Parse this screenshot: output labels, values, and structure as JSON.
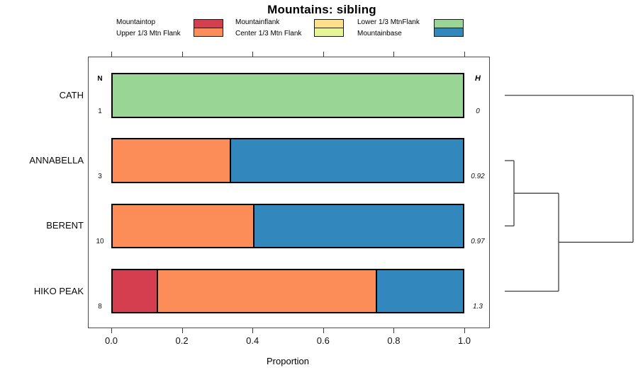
{
  "title": "Mountains: sibling",
  "legend": {
    "columns": [
      {
        "items": [
          {
            "label": "Mountaintop",
            "color": "#d53e4f"
          },
          {
            "label": "Upper 1/3 Mtn Flank",
            "color": "#fc8d59"
          }
        ]
      },
      {
        "items": [
          {
            "label": "Mountainflank",
            "color": "#fee08b"
          },
          {
            "label": "Center 1/3 Mtn Flank",
            "color": "#e6f598"
          }
        ]
      },
      {
        "items": [
          {
            "label": "Lower 1/3 MtnFlank",
            "color": "#99d594"
          },
          {
            "label": "Mountainbase",
            "color": "#3288bd"
          }
        ]
      }
    ]
  },
  "chart_data": {
    "type": "bar",
    "orientation": "horizontal-stacked",
    "title": "Mountains: sibling",
    "xlabel": "Proportion",
    "xlim": [
      0,
      1
    ],
    "xticks": [
      0.0,
      0.2,
      0.4,
      0.6,
      0.8,
      1.0
    ],
    "xtick_labels": [
      "0.0",
      "0.2",
      "0.4",
      "0.6",
      "0.8",
      "1.0"
    ],
    "grid": false,
    "categories": [
      "CATH",
      "ANNABELLA",
      "BERENT",
      "HIKO PEAK"
    ],
    "n_header": "N",
    "h_header": "H",
    "n_values": [
      "1",
      "3",
      "10",
      "8"
    ],
    "h_values": [
      "0",
      "0.92",
      "0.97",
      "1.3"
    ],
    "series_legend": [
      "Mountaintop",
      "Upper 1/3 Mtn Flank",
      "Mountainflank",
      "Center 1/3 Mtn Flank",
      "Lower 1/3 MtnFlank",
      "Mountainbase"
    ],
    "series_colors": [
      "#d53e4f",
      "#fc8d59",
      "#fee08b",
      "#e6f598",
      "#99d594",
      "#3288bd"
    ],
    "rows": [
      {
        "category": "CATH",
        "segments": [
          {
            "label": "Lower 1/3 MtnFlank",
            "color": "#99d594",
            "value": 1.0
          }
        ]
      },
      {
        "category": "ANNABELLA",
        "segments": [
          {
            "label": "Upper 1/3 Mtn Flank",
            "color": "#fc8d59",
            "value": 0.333
          },
          {
            "label": "Mountainbase",
            "color": "#3288bd",
            "value": 0.667
          }
        ]
      },
      {
        "category": "BERENT",
        "segments": [
          {
            "label": "Upper 1/3 Mtn Flank",
            "color": "#fc8d59",
            "value": 0.4
          },
          {
            "label": "Mountainbase",
            "color": "#3288bd",
            "value": 0.6
          }
        ]
      },
      {
        "category": "HIKO PEAK",
        "segments": [
          {
            "label": "Mountaintop",
            "color": "#d53e4f",
            "value": 0.125
          },
          {
            "label": "Upper 1/3 Mtn Flank",
            "color": "#fc8d59",
            "value": 0.625
          },
          {
            "label": "Mountainbase",
            "color": "#3288bd",
            "value": 0.25
          }
        ]
      }
    ],
    "dendrogram": {
      "position": "right",
      "tree": {
        "height": 1.0,
        "children": [
          {
            "leaf": "CATH"
          },
          {
            "height": 0.42,
            "children": [
              {
                "height": 0.072,
                "children": [
                  {
                    "leaf": "ANNABELLA"
                  },
                  {
                    "leaf": "BERENT"
                  }
                ]
              },
              {
                "leaf": "HIKO PEAK"
              }
            ]
          }
        ]
      }
    }
  }
}
